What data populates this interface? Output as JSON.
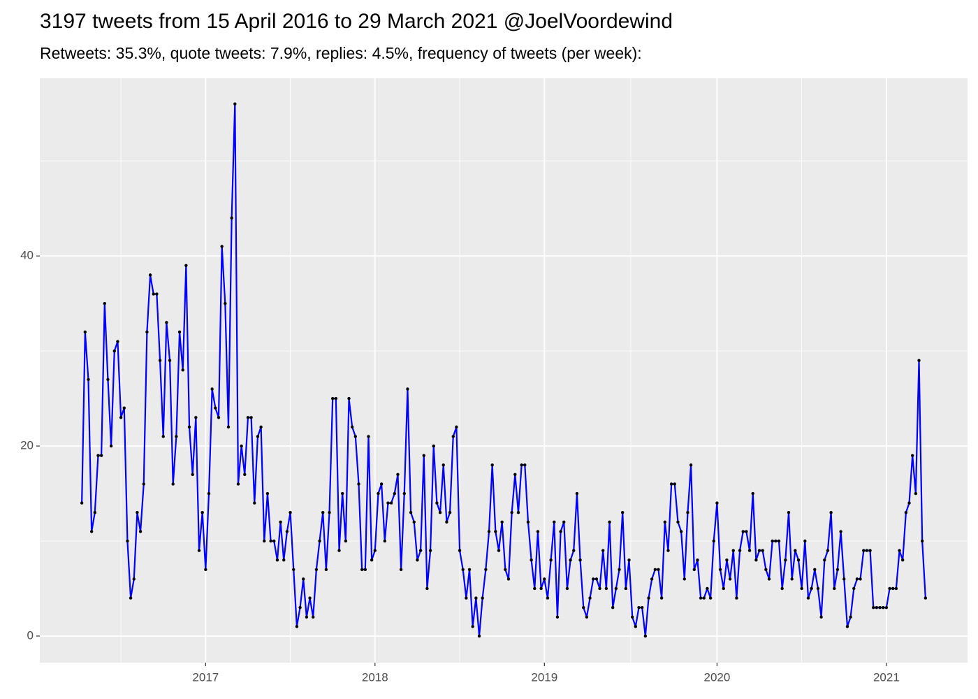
{
  "chart_data": {
    "type": "line",
    "title": "3197 tweets from 15 April 2016 to 29 March 2021 @JoelVoordewind",
    "subtitle": "Retweets: 35.3%, quote tweets: 7.9%, replies: 4.5%, frequency of tweets (per week):",
    "color": "#0000ff",
    "point_color": "#000000",
    "ylim": [
      -2.8,
      58.7
    ],
    "yticks": [
      0,
      20,
      40
    ],
    "y_minor_grid": [
      10,
      30,
      50
    ],
    "grid": true,
    "categories": [
      null,
      null,
      null,
      null,
      null,
      null,
      null,
      null,
      null,
      null,
      null,
      null,
      null,
      null,
      null,
      null,
      null,
      null,
      null,
      null,
      null,
      null,
      null,
      null,
      null,
      null,
      null,
      null,
      null,
      null,
      null,
      null,
      null,
      null,
      null,
      null,
      null,
      null,
      "2017",
      null,
      null,
      null,
      null,
      null,
      null,
      null,
      null,
      null,
      null,
      null,
      null,
      null,
      null,
      null,
      null,
      null,
      null,
      null,
      null,
      null,
      null,
      null,
      null,
      null,
      null,
      null,
      null,
      null,
      null,
      null,
      null,
      null,
      null,
      null,
      null,
      null,
      null,
      null,
      null,
      null,
      null,
      null,
      null,
      null,
      null,
      null,
      null,
      null,
      null,
      null,
      "2018",
      null,
      null,
      null,
      null,
      null,
      null,
      null,
      null,
      null,
      null,
      null,
      null,
      null,
      null,
      null,
      null,
      null,
      null,
      null,
      null,
      null,
      null,
      null,
      null,
      null,
      null,
      null,
      null,
      null,
      null,
      null,
      null,
      null,
      null,
      null,
      null,
      null,
      null,
      null,
      null,
      null,
      null,
      null,
      null,
      null,
      null,
      null,
      null,
      null,
      null,
      null,
      "2019",
      null,
      null,
      null,
      null,
      null,
      null,
      null,
      null,
      null,
      null,
      null,
      null,
      null,
      null,
      null,
      null,
      null,
      null,
      null,
      null,
      null,
      null,
      null,
      null,
      null,
      null,
      null,
      null,
      null,
      null,
      null,
      null,
      null,
      null,
      null,
      null,
      null,
      null,
      null,
      null,
      null,
      null,
      null,
      null,
      null,
      null,
      null,
      null,
      null,
      null,
      null,
      null,
      "2020",
      null,
      null,
      null,
      null,
      null,
      null,
      null,
      null,
      null,
      null,
      null,
      null,
      null,
      null,
      null,
      null,
      null,
      null,
      null,
      null,
      null,
      null,
      null,
      null,
      null,
      null,
      null,
      null,
      null,
      null,
      null,
      null,
      null,
      null,
      null,
      null,
      null,
      null,
      null,
      null,
      null,
      null,
      null,
      null,
      null,
      null,
      null,
      null,
      null,
      null,
      null,
      "2021",
      null,
      null,
      null,
      null,
      null,
      null,
      null,
      null,
      null,
      null,
      null,
      null
    ],
    "values": [
      14,
      32,
      27,
      11,
      13,
      19,
      19,
      35,
      27,
      20,
      30,
      31,
      23,
      24,
      10,
      4,
      6,
      13,
      11,
      16,
      32,
      38,
      36,
      36,
      29,
      21,
      33,
      29,
      16,
      21,
      32,
      28,
      39,
      22,
      17,
      23,
      9,
      13,
      7,
      15,
      26,
      24,
      23,
      41,
      35,
      22,
      44,
      56,
      16,
      20,
      17,
      23,
      23,
      14,
      21,
      22,
      10,
      15,
      10,
      10,
      8,
      12,
      8,
      11,
      13,
      7,
      1,
      3,
      6,
      2,
      4,
      2,
      7,
      10,
      13,
      7,
      13,
      25,
      25,
      9,
      15,
      10,
      25,
      22,
      21,
      16,
      7,
      7,
      21,
      8,
      9,
      15,
      16,
      10,
      14,
      14,
      15,
      17,
      7,
      15,
      26,
      13,
      12,
      8,
      9,
      19,
      5,
      9,
      20,
      14,
      13,
      18,
      12,
      13,
      21,
      22,
      9,
      7,
      4,
      7,
      1,
      4,
      0,
      4,
      7,
      11,
      18,
      11,
      9,
      12,
      7,
      6,
      13,
      17,
      13,
      18,
      18,
      12,
      8,
      5,
      11,
      5,
      6,
      4,
      8,
      12,
      2,
      11,
      12,
      5,
      8,
      9,
      15,
      8,
      3,
      2,
      4,
      6,
      6,
      5,
      9,
      5,
      12,
      3,
      5,
      7,
      13,
      5,
      8,
      2,
      1,
      3,
      3,
      0,
      4,
      6,
      7,
      7,
      4,
      12,
      9,
      16,
      16,
      12,
      11,
      6,
      13,
      18,
      7,
      8,
      4,
      4,
      5,
      4,
      10,
      14,
      7,
      5,
      8,
      6,
      9,
      4,
      9,
      11,
      11,
      9,
      15,
      8,
      9,
      9,
      7,
      6,
      10,
      10,
      10,
      5,
      8,
      13,
      6,
      9,
      8,
      5,
      10,
      4,
      5,
      7,
      5,
      2,
      8,
      9,
      13,
      5,
      7,
      11,
      6,
      1,
      2,
      5,
      6,
      6,
      9,
      9,
      9,
      3,
      3,
      3,
      3,
      3,
      5,
      5,
      5,
      9,
      8,
      13,
      14,
      19,
      15,
      29,
      10,
      4
    ]
  }
}
